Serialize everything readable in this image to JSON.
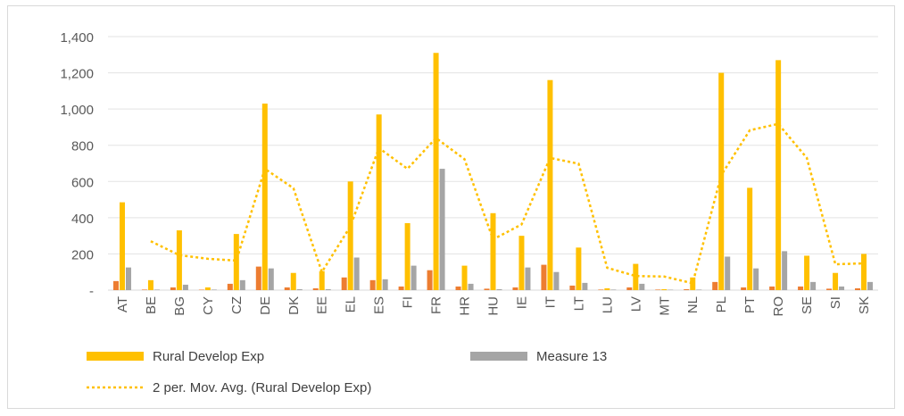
{
  "chart_data": {
    "type": "bar",
    "categories": [
      "AT",
      "BE",
      "BG",
      "CY",
      "CZ",
      "DE",
      "DK",
      "EE",
      "EL",
      "ES",
      "FI",
      "FR",
      "HR",
      "HU",
      "IE",
      "IT",
      "LT",
      "LU",
      "LV",
      "MT",
      "NL",
      "PL",
      "PT",
      "RO",
      "SE",
      "SI",
      "SK"
    ],
    "series": [
      {
        "name": "",
        "color": "#ed7d31",
        "values": [
          50,
          3,
          15,
          2,
          35,
          130,
          15,
          10,
          70,
          55,
          20,
          110,
          20,
          8,
          15,
          140,
          25,
          3,
          15,
          3,
          5,
          45,
          15,
          20,
          20,
          8,
          10
        ]
      },
      {
        "name": "Rural Develop Exp",
        "color": "#ffc000",
        "values": [
          485,
          55,
          330,
          15,
          310,
          1030,
          95,
          105,
          600,
          970,
          370,
          1310,
          135,
          425,
          300,
          1160,
          235,
          10,
          145,
          5,
          70,
          1200,
          565,
          1270,
          190,
          95,
          200
        ]
      },
      {
        "name": "Measure 13",
        "color": "#a5a5a5",
        "values": [
          125,
          3,
          30,
          3,
          55,
          120,
          5,
          5,
          180,
          60,
          135,
          670,
          35,
          5,
          125,
          100,
          40,
          3,
          35,
          2,
          3,
          185,
          120,
          215,
          45,
          20,
          45
        ]
      }
    ],
    "moving_average": {
      "name": "2 per. Mov. Avg. (Rural Develop Exp)",
      "color": "#ffc000",
      "values": [
        null,
        270,
        193,
        173,
        163,
        670,
        563,
        100,
        353,
        785,
        670,
        840,
        723,
        280,
        363,
        730,
        698,
        123,
        78,
        75,
        38,
        635,
        883,
        918,
        730,
        143,
        148
      ]
    },
    "y_ticks": [
      "-",
      "200",
      "400",
      "600",
      "800",
      "1,000",
      "1,200",
      "1,400"
    ],
    "ylim": [
      0,
      1400
    ],
    "grid": true,
    "legend_position": "bottom",
    "title": "",
    "xlabel": "",
    "ylabel": ""
  },
  "legend": {
    "rural": "Rural Develop Exp",
    "measure": "Measure 13",
    "movavg": "2 per. Mov. Avg. (Rural Develop Exp)"
  }
}
